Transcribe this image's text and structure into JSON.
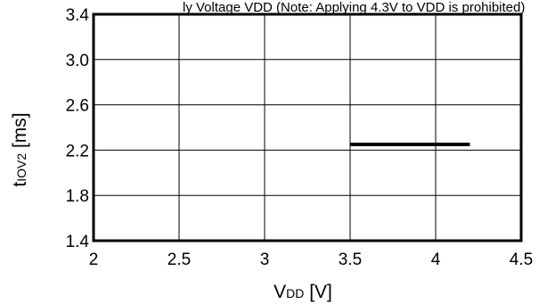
{
  "header_fragment": "ly Voltage VDD (Note: Applying 4.3V to VDD is prohibited)",
  "chart_data": {
    "type": "line",
    "title": "",
    "xlabel": {
      "main": "V",
      "sub": "DD",
      "unit": " [V]"
    },
    "ylabel": {
      "main": "t",
      "sub": "IOV2",
      "unit": " [ms]"
    },
    "xlim": [
      2,
      4.5
    ],
    "ylim": [
      1.4,
      3.4
    ],
    "x_ticks": [
      2,
      2.5,
      3,
      3.5,
      4,
      4.5
    ],
    "x_tick_labels": [
      "2",
      "2.5",
      "3",
      "3.5",
      "4",
      "4.5"
    ],
    "y_ticks": [
      1.4,
      1.8,
      2.2,
      2.6,
      3.0,
      3.4
    ],
    "y_tick_labels": [
      "1.4",
      "1.8",
      "2.2",
      "2.6",
      "3.0",
      "3.4"
    ],
    "grid": true,
    "series": [
      {
        "x": [
          3.5,
          4.2
        ],
        "y": [
          2.25,
          2.25
        ],
        "color": "#000000"
      }
    ]
  }
}
